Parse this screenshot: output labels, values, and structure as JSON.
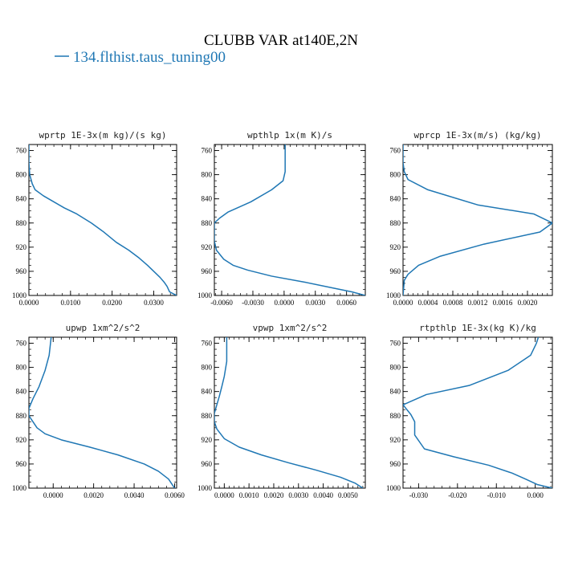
{
  "figure": {
    "title": "CLUBB VAR at140E,2N",
    "legend": {
      "label": "134.flthist.taus_tuning00",
      "color": "#1f77b4"
    },
    "line_color": "#1f77b4"
  },
  "chart_data": [
    {
      "type": "line",
      "title": "wprtp  1E-3x(m kg)/(s kg)",
      "xlim": [
        0.0,
        0.0355
      ],
      "ylim": [
        1000,
        750
      ],
      "yticks": [
        760,
        800,
        840,
        880,
        920,
        960,
        1000
      ],
      "xticks": [
        0.0,
        0.01,
        0.02,
        0.03
      ],
      "xtick_labels": [
        "0.0000",
        "0.0100",
        "0.0200",
        "0.0300"
      ],
      "series": [
        {
          "x": [
            0.0,
            0.0,
            0.0002,
            0.0008,
            0.0015,
            0.0035,
            0.006,
            0.0085,
            0.0115,
            0.015,
            0.018,
            0.021,
            0.024,
            0.0265,
            0.0285,
            0.03,
            0.0315,
            0.0325,
            0.0332,
            0.0338,
            0.0355
          ],
          "y": [
            750,
            780,
            800,
            815,
            825,
            835,
            845,
            855,
            865,
            880,
            895,
            912,
            925,
            938,
            950,
            960,
            970,
            978,
            985,
            994,
            1000
          ]
        }
      ]
    },
    {
      "type": "line",
      "title": "wpthlp  1x(m K)/s",
      "xlim": [
        -0.0067,
        0.0078
      ],
      "ylim": [
        1000,
        750
      ],
      "yticks": [
        760,
        800,
        840,
        880,
        920,
        960,
        1000
      ],
      "xticks": [
        -0.006,
        -0.003,
        0.0,
        0.003,
        0.006
      ],
      "xtick_labels": [
        "-0.0060",
        "-0.0030",
        "0.0000",
        "0.0030",
        "0.0060"
      ],
      "series": [
        {
          "x": [
            0.0001,
            0.0001,
            0.0001,
            -0.0001,
            -0.0012,
            -0.0032,
            -0.0054,
            -0.0062,
            -0.0067,
            -0.0067,
            -0.0067,
            -0.0065,
            -0.0058,
            -0.0049,
            -0.0035,
            -0.0012,
            0.002,
            0.0048,
            0.0065,
            0.0078
          ],
          "y": [
            750,
            780,
            795,
            810,
            825,
            845,
            862,
            872,
            880,
            895,
            910,
            925,
            940,
            950,
            958,
            968,
            978,
            988,
            994,
            1000
          ]
        }
      ]
    },
    {
      "type": "line",
      "title": "wprcp  1E-3x(m/s) (kg/kg)",
      "xlim": [
        0.0,
        0.0024
      ],
      "ylim": [
        1000,
        750
      ],
      "yticks": [
        760,
        800,
        840,
        880,
        920,
        960,
        1000
      ],
      "xticks": [
        0.0,
        0.0004,
        0.0008,
        0.0012,
        0.0016,
        0.002
      ],
      "xtick_labels": [
        "0.0000",
        "0.0004",
        "0.0008",
        "0.0012",
        "0.0016",
        "0.0020"
      ],
      "series": [
        {
          "x": [
            0.0,
            0.0,
            2e-05,
            8e-05,
            0.0004,
            0.0012,
            0.0021,
            0.0024,
            0.0022,
            0.0013,
            0.0006,
            0.00025,
            8e-05,
            2e-05,
            0.0
          ],
          "y": [
            750,
            780,
            795,
            808,
            825,
            850,
            865,
            880,
            895,
            915,
            935,
            950,
            965,
            975,
            1000
          ]
        }
      ]
    },
    {
      "type": "line",
      "title": "upwp  1xm^2/s^2",
      "xlim": [
        -0.0012,
        0.0061
      ],
      "ylim": [
        1000,
        750
      ],
      "yticks": [
        760,
        800,
        840,
        880,
        920,
        960,
        1000
      ],
      "xticks": [
        0.0,
        0.002,
        0.004,
        0.006
      ],
      "xtick_labels": [
        "0.0000",
        "0.0020",
        "0.0040",
        "0.0060"
      ],
      "series": [
        {
          "x": [
            -0.0001,
            -0.0002,
            -0.0004,
            -0.0007,
            -0.001,
            -0.0012,
            -0.0012,
            -0.001,
            -0.0008,
            -0.0004,
            0.0004,
            0.0018,
            0.0032,
            0.0045,
            0.0052,
            0.0057,
            0.006
          ],
          "y": [
            750,
            780,
            805,
            832,
            852,
            868,
            880,
            890,
            900,
            910,
            920,
            932,
            945,
            960,
            972,
            985,
            1000
          ]
        }
      ]
    },
    {
      "type": "line",
      "title": "vpwp  1xm^2/s^2",
      "xlim": [
        -0.0004,
        0.0057
      ],
      "ylim": [
        1000,
        750
      ],
      "yticks": [
        760,
        800,
        840,
        880,
        920,
        960,
        1000
      ],
      "xticks": [
        0.0,
        0.001,
        0.002,
        0.003,
        0.004,
        0.005
      ],
      "xtick_labels": [
        "0.0000",
        "0.0010",
        "0.0020",
        "0.0030",
        "0.0040",
        "0.0050"
      ],
      "series": [
        {
          "x": [
            0.0001,
            0.0001,
            0.0,
            -0.0001,
            -0.0002,
            -0.0003,
            -0.0004,
            -0.0004,
            -0.0003,
            0.0,
            0.0006,
            0.0015,
            0.0026,
            0.0037,
            0.0047,
            0.0053,
            0.0056
          ],
          "y": [
            750,
            790,
            815,
            832,
            848,
            862,
            876,
            890,
            902,
            918,
            932,
            945,
            958,
            970,
            982,
            992,
            1000
          ]
        }
      ]
    },
    {
      "type": "line",
      "title": "rtpthlp  1E-3x(kg K)/kg",
      "xlim": [
        -0.034,
        0.0044
      ],
      "ylim": [
        1000,
        750
      ],
      "yticks": [
        760,
        800,
        840,
        880,
        920,
        960,
        1000
      ],
      "xticks": [
        -0.03,
        -0.02,
        -0.01,
        0.0
      ],
      "xtick_labels": [
        "-0.030",
        "-0.020",
        "-0.010",
        "0.000"
      ],
      "series": [
        {
          "x": [
            0.0008,
            0.0003,
            -0.0012,
            -0.007,
            -0.017,
            -0.028,
            -0.034,
            -0.032,
            -0.031,
            -0.031,
            -0.031,
            -0.0285,
            -0.021,
            -0.012,
            -0.006,
            -0.0025,
            0.0005,
            0.0044
          ],
          "y": [
            750,
            760,
            780,
            805,
            830,
            845,
            862,
            878,
            890,
            902,
            912,
            935,
            948,
            962,
            975,
            985,
            994,
            1000
          ]
        }
      ]
    }
  ]
}
